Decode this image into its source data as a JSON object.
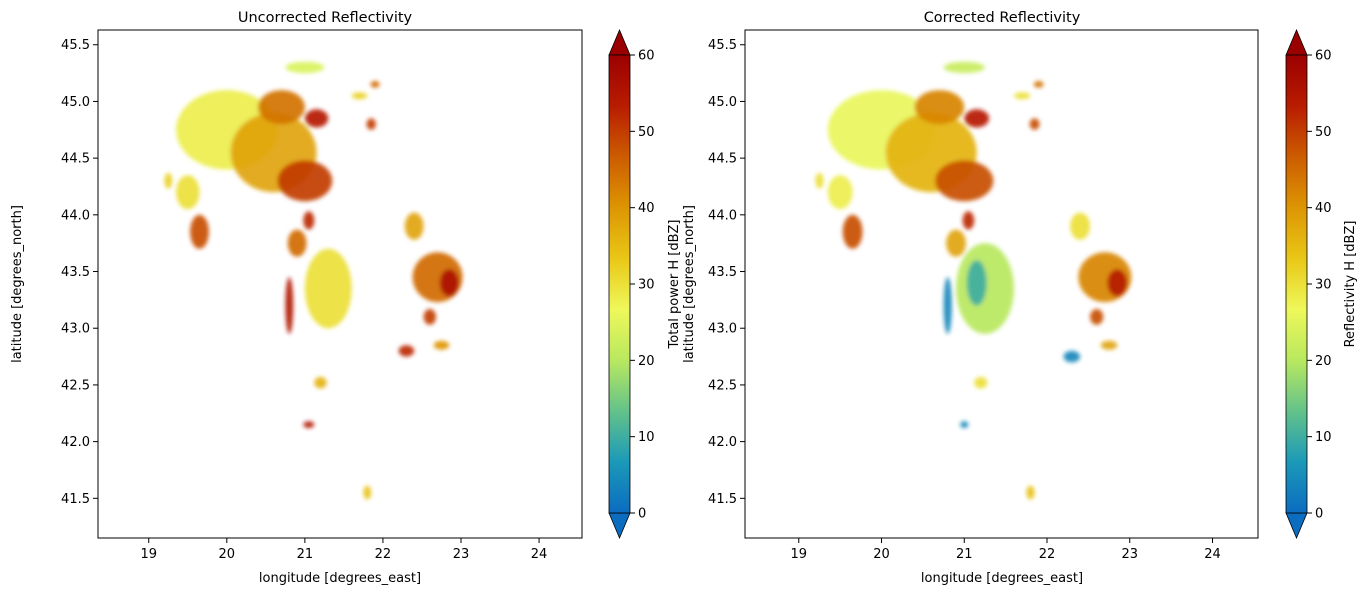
{
  "colorscale": {
    "stops": [
      "#0b6cc0",
      "#1b99b8",
      "#63c28a",
      "#b8e85f",
      "#eef85a",
      "#e9c716",
      "#dd9503",
      "#cc5c00",
      "#b81c00",
      "#9b0000"
    ],
    "min": 0,
    "max": 60,
    "extend": "both"
  },
  "chart_data": [
    {
      "type": "heatmap",
      "title": "Uncorrected Reflectivity",
      "xlabel": "longitude [degrees_east]",
      "ylabel": "latitude [degrees_north]",
      "colorbar_label": "Total power H [dBZ]",
      "xlim": [
        18.35,
        24.55
      ],
      "ylim": [
        41.15,
        45.63
      ],
      "x_ticks": [
        19,
        20,
        21,
        22,
        23,
        24
      ],
      "y_ticks": [
        41.5,
        42.0,
        42.5,
        43.0,
        43.5,
        44.0,
        44.5,
        45.0,
        45.5
      ],
      "colorbar_ticks": [
        0,
        10,
        20,
        30,
        40,
        50,
        60
      ],
      "clim": [
        0,
        60
      ],
      "cells": [
        {
          "lon": 20.0,
          "lat": 44.75,
          "rx": 0.65,
          "ry": 0.35,
          "dbz": 28
        },
        {
          "lon": 20.6,
          "lat": 44.55,
          "rx": 0.55,
          "ry": 0.35,
          "dbz": 38
        },
        {
          "lon": 21.0,
          "lat": 44.3,
          "rx": 0.35,
          "ry": 0.18,
          "dbz": 50
        },
        {
          "lon": 20.7,
          "lat": 44.95,
          "rx": 0.3,
          "ry": 0.15,
          "dbz": 44
        },
        {
          "lon": 21.15,
          "lat": 44.85,
          "rx": 0.15,
          "ry": 0.08,
          "dbz": 54
        },
        {
          "lon": 19.65,
          "lat": 43.85,
          "rx": 0.12,
          "ry": 0.15,
          "dbz": 48
        },
        {
          "lon": 19.5,
          "lat": 44.2,
          "rx": 0.15,
          "ry": 0.15,
          "dbz": 30
        },
        {
          "lon": 21.3,
          "lat": 43.35,
          "rx": 0.3,
          "ry": 0.35,
          "dbz": 30
        },
        {
          "lon": 20.9,
          "lat": 43.75,
          "rx": 0.12,
          "ry": 0.12,
          "dbz": 45
        },
        {
          "lon": 21.05,
          "lat": 43.95,
          "rx": 0.07,
          "ry": 0.08,
          "dbz": 52
        },
        {
          "lon": 22.7,
          "lat": 43.45,
          "rx": 0.32,
          "ry": 0.22,
          "dbz": 45
        },
        {
          "lon": 22.85,
          "lat": 43.4,
          "rx": 0.12,
          "ry": 0.12,
          "dbz": 56
        },
        {
          "lon": 22.4,
          "lat": 43.9,
          "rx": 0.12,
          "ry": 0.12,
          "dbz": 38
        },
        {
          "lon": 22.6,
          "lat": 43.1,
          "rx": 0.08,
          "ry": 0.07,
          "dbz": 50
        },
        {
          "lon": 22.3,
          "lat": 42.8,
          "rx": 0.1,
          "ry": 0.05,
          "dbz": 52
        },
        {
          "lon": 22.75,
          "lat": 42.85,
          "rx": 0.1,
          "ry": 0.04,
          "dbz": 40
        },
        {
          "lon": 21.2,
          "lat": 42.52,
          "rx": 0.08,
          "ry": 0.05,
          "dbz": 36
        },
        {
          "lon": 21.05,
          "lat": 42.15,
          "rx": 0.07,
          "ry": 0.03,
          "dbz": 55
        },
        {
          "lon": 21.8,
          "lat": 41.55,
          "rx": 0.05,
          "ry": 0.06,
          "dbz": 34
        },
        {
          "lon": 20.8,
          "lat": 43.2,
          "rx": 0.05,
          "ry": 0.25,
          "dbz": 55
        },
        {
          "lon": 21.85,
          "lat": 44.8,
          "rx": 0.06,
          "ry": 0.05,
          "dbz": 50
        },
        {
          "lon": 21.9,
          "lat": 45.15,
          "rx": 0.06,
          "ry": 0.03,
          "dbz": 45
        },
        {
          "lon": 21.7,
          "lat": 45.05,
          "rx": 0.1,
          "ry": 0.03,
          "dbz": 32
        },
        {
          "lon": 21.0,
          "lat": 45.3,
          "rx": 0.25,
          "ry": 0.05,
          "dbz": 24
        },
        {
          "lon": 19.25,
          "lat": 44.3,
          "rx": 0.05,
          "ry": 0.07,
          "dbz": 32
        }
      ]
    },
    {
      "type": "heatmap",
      "title": "Corrected Reflectivity",
      "xlabel": "longitude [degrees_east]",
      "ylabel": "latitude [degrees_north]",
      "colorbar_label": "Reflectivity H [dBZ]",
      "xlim": [
        18.35,
        24.55
      ],
      "ylim": [
        41.15,
        45.63
      ],
      "x_ticks": [
        19,
        20,
        21,
        22,
        23,
        24
      ],
      "y_ticks": [
        41.5,
        42.0,
        42.5,
        43.0,
        43.5,
        44.0,
        44.5,
        45.0,
        45.5
      ],
      "colorbar_ticks": [
        0,
        10,
        20,
        30,
        40,
        50,
        60
      ],
      "clim": [
        0,
        60
      ],
      "cells": [
        {
          "lon": 20.0,
          "lat": 44.75,
          "rx": 0.65,
          "ry": 0.35,
          "dbz": 26
        },
        {
          "lon": 20.6,
          "lat": 44.55,
          "rx": 0.55,
          "ry": 0.35,
          "dbz": 36
        },
        {
          "lon": 21.0,
          "lat": 44.3,
          "rx": 0.35,
          "ry": 0.18,
          "dbz": 48
        },
        {
          "lon": 20.7,
          "lat": 44.95,
          "rx": 0.3,
          "ry": 0.15,
          "dbz": 42
        },
        {
          "lon": 21.15,
          "lat": 44.85,
          "rx": 0.15,
          "ry": 0.08,
          "dbz": 54
        },
        {
          "lon": 19.65,
          "lat": 43.85,
          "rx": 0.12,
          "ry": 0.15,
          "dbz": 48
        },
        {
          "lon": 19.5,
          "lat": 44.2,
          "rx": 0.15,
          "ry": 0.15,
          "dbz": 28
        },
        {
          "lon": 21.25,
          "lat": 43.35,
          "rx": 0.35,
          "ry": 0.4,
          "dbz": 20
        },
        {
          "lon": 21.15,
          "lat": 43.4,
          "rx": 0.12,
          "ry": 0.2,
          "dbz": 10
        },
        {
          "lon": 20.9,
          "lat": 43.75,
          "rx": 0.12,
          "ry": 0.12,
          "dbz": 38
        },
        {
          "lon": 21.05,
          "lat": 43.95,
          "rx": 0.07,
          "ry": 0.08,
          "dbz": 52
        },
        {
          "lon": 22.7,
          "lat": 43.45,
          "rx": 0.32,
          "ry": 0.22,
          "dbz": 42
        },
        {
          "lon": 22.85,
          "lat": 43.4,
          "rx": 0.12,
          "ry": 0.12,
          "dbz": 54
        },
        {
          "lon": 22.4,
          "lat": 43.9,
          "rx": 0.12,
          "ry": 0.12,
          "dbz": 30
        },
        {
          "lon": 22.6,
          "lat": 43.1,
          "rx": 0.08,
          "ry": 0.07,
          "dbz": 48
        },
        {
          "lon": 22.3,
          "lat": 42.75,
          "rx": 0.1,
          "ry": 0.05,
          "dbz": 4
        },
        {
          "lon": 22.75,
          "lat": 42.85,
          "rx": 0.1,
          "ry": 0.04,
          "dbz": 38
        },
        {
          "lon": 21.2,
          "lat": 42.52,
          "rx": 0.08,
          "ry": 0.05,
          "dbz": 30
        },
        {
          "lon": 21.0,
          "lat": 42.15,
          "rx": 0.05,
          "ry": 0.03,
          "dbz": 4
        },
        {
          "lon": 21.8,
          "lat": 41.55,
          "rx": 0.05,
          "ry": 0.06,
          "dbz": 34
        },
        {
          "lon": 20.8,
          "lat": 43.2,
          "rx": 0.05,
          "ry": 0.25,
          "dbz": 4
        },
        {
          "lon": 21.85,
          "lat": 44.8,
          "rx": 0.06,
          "ry": 0.05,
          "dbz": 48
        },
        {
          "lon": 21.9,
          "lat": 45.15,
          "rx": 0.06,
          "ry": 0.03,
          "dbz": 44
        },
        {
          "lon": 21.7,
          "lat": 45.05,
          "rx": 0.1,
          "ry": 0.03,
          "dbz": 30
        },
        {
          "lon": 21.0,
          "lat": 45.3,
          "rx": 0.25,
          "ry": 0.05,
          "dbz": 22
        },
        {
          "lon": 19.25,
          "lat": 44.3,
          "rx": 0.05,
          "ry": 0.07,
          "dbz": 30
        }
      ]
    }
  ]
}
